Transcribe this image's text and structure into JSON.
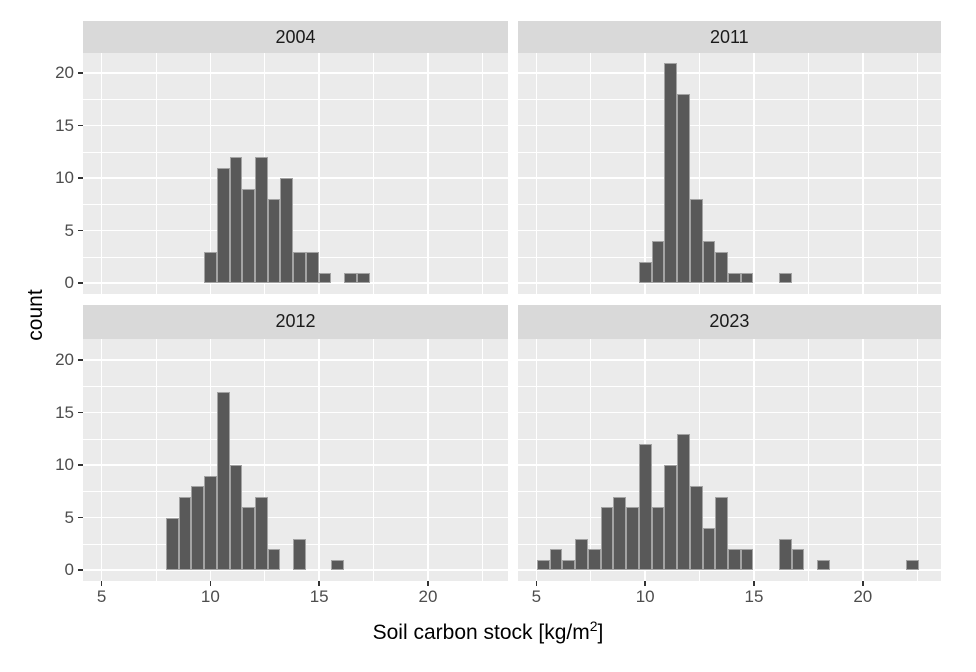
{
  "chart_data": {
    "type": "histogram",
    "title": "",
    "xlabel": "Soil carbon stock [kg/m²]",
    "xlabel_parts": {
      "prefix": "Soil carbon stock [kg/m",
      "superscript": "2",
      "suffix": "]"
    },
    "ylabel": "count",
    "x_ticks": [
      5,
      10,
      15,
      20
    ],
    "y_ticks": [
      0,
      5,
      10,
      15,
      20
    ],
    "x_minor_gridlines": [
      7.5,
      12.5,
      17.5,
      22.5
    ],
    "y_minor_gridlines": [
      2.5,
      7.5,
      12.5,
      17.5
    ],
    "x_range": [
      4.15,
      23.66
    ],
    "y_range": [
      -1.05,
      21.95
    ],
    "bin_origin": 5.03,
    "bin_width": 0.585,
    "grid": "on",
    "legend": "none",
    "facets": [
      {
        "label": "2004",
        "bars": [
          [
            8,
            3
          ],
          [
            9,
            11
          ],
          [
            10,
            12
          ],
          [
            11,
            9
          ],
          [
            12,
            12
          ],
          [
            13,
            8
          ],
          [
            14,
            10
          ],
          [
            15,
            3
          ],
          [
            16,
            3
          ],
          [
            17,
            1
          ],
          [
            19,
            1
          ],
          [
            20,
            1
          ]
        ]
      },
      {
        "label": "2011",
        "bars": [
          [
            8,
            2
          ],
          [
            9,
            4
          ],
          [
            10,
            21
          ],
          [
            11,
            18
          ],
          [
            12,
            8
          ],
          [
            13,
            4
          ],
          [
            14,
            3
          ],
          [
            15,
            1
          ],
          [
            16,
            1
          ],
          [
            19,
            1
          ]
        ]
      },
      {
        "label": "2012",
        "bars": [
          [
            5,
            5
          ],
          [
            6,
            7
          ],
          [
            7,
            8
          ],
          [
            8,
            9
          ],
          [
            9,
            17
          ],
          [
            10,
            10
          ],
          [
            11,
            6
          ],
          [
            12,
            7
          ],
          [
            13,
            2
          ],
          [
            15,
            3
          ],
          [
            18,
            1
          ]
        ]
      },
      {
        "label": "2023",
        "bars": [
          [
            0,
            1
          ],
          [
            1,
            2
          ],
          [
            2,
            1
          ],
          [
            3,
            3
          ],
          [
            4,
            2
          ],
          [
            5,
            6
          ],
          [
            6,
            7
          ],
          [
            7,
            6
          ],
          [
            8,
            12
          ],
          [
            9,
            6
          ],
          [
            10,
            10
          ],
          [
            11,
            13
          ],
          [
            12,
            8
          ],
          [
            13,
            4
          ],
          [
            14,
            7
          ],
          [
            15,
            2
          ],
          [
            16,
            2
          ],
          [
            19,
            3
          ],
          [
            20,
            2
          ],
          [
            22,
            1
          ],
          [
            29,
            1
          ]
        ]
      }
    ],
    "colors": {
      "bar_fill": "#595959",
      "bar_stroke": "#a3a3a3",
      "panel_background": "#ebebeb",
      "strip_background": "#d9d9d9",
      "gridline": "#ffffff",
      "tick_mark": "#333333",
      "tick_label": "#4d4d4d",
      "axis_title": "#000000",
      "strip_text": "#1a1a1a",
      "figure_background": "#ffffff"
    }
  }
}
